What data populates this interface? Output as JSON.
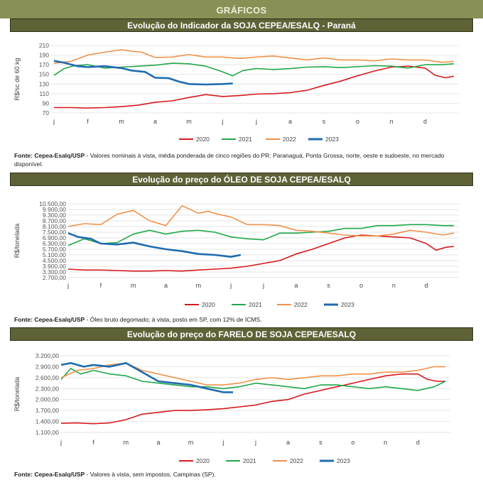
{
  "page": {
    "header": "GRÁFICOS"
  },
  "colors": {
    "2020": "#d7191c",
    "2021": "#21a84a",
    "2022": "#f0924a",
    "2023": "#1f6bb0",
    "header_bg": "#8a8f55",
    "title_bg": "#5e6236"
  },
  "chart_data": [
    {
      "type": "line",
      "title": "Evolução do Indicador da SOJA CEPEA/ESALQ - Paraná",
      "ylabel": "R$/sc de 60 kg",
      "ylim": [
        70,
        210
      ],
      "yticks": [
        "210",
        "190",
        "170",
        "150",
        "130",
        "110",
        "90",
        "70"
      ],
      "x_months": [
        "j",
        "f",
        "m",
        "a",
        "m",
        "j",
        "j",
        "a",
        "s",
        "o",
        "n",
        "d"
      ],
      "series": [
        {
          "name": "2020",
          "color": "#d7191c",
          "x": [
            0,
            0.5,
            1,
            1.5,
            2,
            2.5,
            3,
            3.5,
            4,
            4.5,
            5,
            5.5,
            6,
            6.5,
            7,
            7.5,
            8,
            8.5,
            9,
            9.5,
            10,
            10.5,
            11,
            11.3,
            11.6,
            11.85
          ],
          "values": [
            81,
            81,
            80,
            81,
            83,
            86,
            92,
            95,
            102,
            108,
            104,
            106,
            109,
            110,
            112,
            117,
            127,
            136,
            147,
            157,
            165,
            167,
            163,
            148,
            143,
            146
          ]
        },
        {
          "name": "2021",
          "color": "#21a84a",
          "x": [
            0,
            0.3,
            0.6,
            1,
            1.5,
            2,
            2.5,
            3,
            3.5,
            4,
            4.5,
            5,
            5.3,
            5.6,
            6,
            6.5,
            7,
            7.5,
            8,
            8.5,
            9,
            9.5,
            10,
            10.5,
            11,
            11.5,
            11.85
          ],
          "values": [
            148,
            162,
            168,
            170,
            163,
            165,
            167,
            169,
            173,
            172,
            167,
            155,
            147,
            158,
            162,
            160,
            162,
            165,
            166,
            164,
            166,
            168,
            167,
            163,
            170,
            170,
            172
          ]
        },
        {
          "name": "2022",
          "color": "#f0924a",
          "x": [
            0,
            0.5,
            1,
            1.5,
            2,
            2.3,
            2.6,
            3,
            3.5,
            4,
            4.5,
            5,
            5.5,
            6,
            6.5,
            7,
            7.5,
            8,
            8.5,
            9,
            9.5,
            10,
            10.5,
            11,
            11.5,
            11.85
          ],
          "values": [
            173,
            177,
            190,
            196,
            201,
            198,
            196,
            185,
            186,
            191,
            186,
            186,
            183,
            186,
            188,
            184,
            180,
            184,
            180,
            180,
            178,
            182,
            180,
            180,
            175,
            177
          ]
        },
        {
          "name": "2023",
          "color": "#1f6bb0",
          "x": [
            0,
            0.3,
            0.7,
            1,
            1.5,
            2,
            2.3,
            2.7,
            3,
            3.4,
            3.7,
            4,
            4.5,
            5,
            5.3
          ],
          "values": [
            178,
            174,
            167,
            165,
            167,
            163,
            158,
            155,
            143,
            142,
            135,
            130,
            129,
            130,
            131
          ]
        }
      ],
      "legend": [
        "2020",
        "2021",
        "2022",
        "2023"
      ],
      "legend_position": "bottom",
      "grid": true
    },
    {
      "type": "line",
      "title": "Evolução do preço do ÓLEO DE SOJA CEPEA/ESALQ",
      "ylabel": "R$/tonelada",
      "ylim": [
        2700,
        10500
      ],
      "yticks": [
        "10.500,00",
        "9.900,00",
        "9.300,00",
        "8.700,00",
        "8.100,00",
        "7.500,00",
        "6.900,00",
        "6.300,00",
        "5.700,00",
        "5.100,00",
        "4.500,00",
        "3.900,00",
        "3.300,00",
        "2.700,00"
      ],
      "x_months": [
        "j",
        "f",
        "m",
        "a",
        "m",
        "j",
        "j",
        "a",
        "s",
        "o",
        "n",
        "d"
      ],
      "series": [
        {
          "name": "2020",
          "color": "#d7191c",
          "x": [
            0,
            0.5,
            1,
            1.5,
            2,
            2.5,
            3,
            3.5,
            4,
            4.5,
            5,
            5.5,
            6,
            6.5,
            7,
            7.5,
            8,
            8.5,
            9,
            9.5,
            10,
            10.5,
            11,
            11.3,
            11.6,
            11.85
          ],
          "values": [
            3600,
            3500,
            3500,
            3450,
            3400,
            3400,
            3450,
            3400,
            3500,
            3600,
            3700,
            3900,
            4200,
            4500,
            5200,
            5700,
            6300,
            6900,
            7200,
            7100,
            7000,
            6900,
            6300,
            5600,
            5900,
            6000
          ]
        },
        {
          "name": "2021",
          "color": "#21a84a",
          "x": [
            0,
            0.5,
            1,
            1.5,
            2,
            2.5,
            3,
            3.5,
            4,
            4.5,
            5,
            5.5,
            6,
            6.5,
            7,
            7.5,
            8,
            8.5,
            9,
            9.5,
            10,
            10.5,
            11,
            11.5,
            11.85
          ],
          "values": [
            6100,
            6800,
            6300,
            6400,
            7300,
            7700,
            7300,
            7600,
            7700,
            7500,
            7000,
            6800,
            6700,
            7400,
            7400,
            7500,
            7600,
            7900,
            7900,
            8200,
            8200,
            8300,
            8300,
            8200,
            8200
          ]
        },
        {
          "name": "2022",
          "color": "#f0924a",
          "x": [
            0,
            0.5,
            1,
            1.5,
            2,
            2.5,
            3,
            3.5,
            4,
            4.3,
            4.6,
            5,
            5.5,
            6,
            6.5,
            7,
            7.5,
            8,
            8.5,
            9,
            9.5,
            10,
            10.5,
            11,
            11.5,
            11.85
          ],
          "values": [
            8100,
            8400,
            8300,
            9400,
            9800,
            8700,
            8200,
            10300,
            9500,
            9700,
            9400,
            9100,
            8300,
            8300,
            8200,
            7700,
            7600,
            7400,
            7200,
            7100,
            7100,
            7300,
            7700,
            7500,
            7200,
            7400
          ]
        },
        {
          "name": "2023",
          "color": "#1f6bb0",
          "x": [
            0,
            0.3,
            0.7,
            1,
            1.5,
            2,
            2.5,
            3,
            3.5,
            4,
            4.5,
            5,
            5.3
          ],
          "values": [
            7400,
            7000,
            6800,
            6300,
            6200,
            6400,
            6000,
            5700,
            5500,
            5200,
            5100,
            4900,
            5100
          ]
        }
      ],
      "legend": [
        "2020",
        "2021",
        "2022",
        "2023"
      ],
      "legend_position": "bottom",
      "grid": true
    },
    {
      "type": "line",
      "title": "Evolução do preço do FARELO DE SOJA CEPEA/ESALQ",
      "ylabel": "R$/tonelada",
      "ylim": [
        1100,
        3200
      ],
      "yticks": [
        "3.200,00",
        "2.900,00",
        "2.600,00",
        "2.300,00",
        "2.000,00",
        "1.700,00",
        "1.400,00",
        "1.100,00"
      ],
      "x_months": [
        "j",
        "f",
        "m",
        "a",
        "m",
        "j",
        "j",
        "a",
        "s",
        "o",
        "n",
        "d"
      ],
      "series": [
        {
          "name": "2020",
          "color": "#d7191c",
          "x": [
            0,
            0.5,
            1,
            1.5,
            2,
            2.5,
            3,
            3.5,
            4,
            4.5,
            5,
            5.5,
            6,
            6.5,
            7,
            7.5,
            8,
            8.5,
            9,
            9.5,
            10,
            10.5,
            11,
            11.3,
            11.6,
            11.85
          ],
          "values": [
            1350,
            1360,
            1340,
            1360,
            1450,
            1600,
            1650,
            1700,
            1700,
            1720,
            1750,
            1800,
            1850,
            1950,
            2000,
            2150,
            2250,
            2350,
            2450,
            2550,
            2650,
            2700,
            2700,
            2550,
            2500,
            2500
          ]
        },
        {
          "name": "2021",
          "color": "#21a84a",
          "x": [
            0,
            0.3,
            0.6,
            1,
            1.5,
            2,
            2.5,
            3,
            3.5,
            4,
            4.5,
            5,
            5.5,
            6,
            6.5,
            7,
            7.5,
            8,
            8.5,
            9,
            9.5,
            10,
            10.5,
            11,
            11.5,
            11.85
          ],
          "values": [
            2550,
            2850,
            2700,
            2800,
            2700,
            2650,
            2500,
            2450,
            2400,
            2350,
            2350,
            2300,
            2350,
            2450,
            2400,
            2350,
            2300,
            2400,
            2400,
            2350,
            2300,
            2350,
            2300,
            2250,
            2350,
            2500
          ]
        },
        {
          "name": "2022",
          "color": "#f0924a",
          "x": [
            0,
            0.5,
            1,
            1.5,
            2,
            2.5,
            3,
            3.5,
            4,
            4.5,
            5,
            5.5,
            6,
            6.5,
            7,
            7.5,
            8,
            8.5,
            9,
            9.5,
            10,
            10.5,
            11,
            11.5,
            11.85
          ],
          "values": [
            2600,
            2800,
            2850,
            2950,
            3000,
            2800,
            2700,
            2600,
            2500,
            2400,
            2400,
            2450,
            2550,
            2600,
            2550,
            2600,
            2650,
            2650,
            2700,
            2700,
            2750,
            2750,
            2800,
            2900,
            2900
          ]
        },
        {
          "name": "2023",
          "color": "#1f6bb0",
          "x": [
            0,
            0.3,
            0.7,
            1,
            1.5,
            2,
            2.5,
            3,
            3.5,
            4,
            4.5,
            5,
            5.3
          ],
          "values": [
            2950,
            3000,
            2900,
            2950,
            2900,
            3000,
            2750,
            2500,
            2450,
            2400,
            2300,
            2200,
            2200
          ]
        }
      ],
      "legend": [
        "2020",
        "2021",
        "2022",
        "2023"
      ],
      "legend_position": "bottom",
      "grid": true
    }
  ],
  "notes": [
    {
      "bold": "Fonte: Cepea-Esalq/USP",
      "text": " - Valores nominais à vista, média ponderada de cinco regiões do PR: Paranaguá, Ponta Grossa, norte, oeste e sudoeste, no mercado disponível."
    },
    {
      "bold": "Fonte: Cepea-Esalq/USP",
      "text": " - Óleo bruto degomado; à vista, posto em SP, com 12% de ICMS."
    },
    {
      "bold": "Fonte: Cepea-Esalq/USP",
      "text": " - Valores à vista, sem impostos, Campinas (SP)."
    }
  ]
}
